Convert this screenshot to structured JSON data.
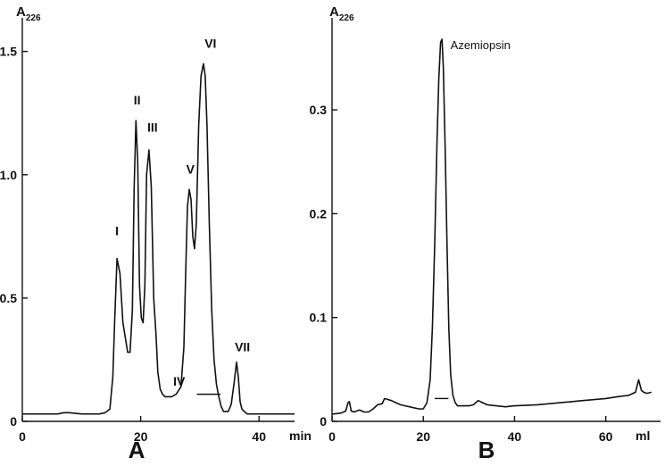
{
  "chart_data": [
    {
      "type": "line",
      "panel_label": "A",
      "ylabel_main": "A",
      "ylabel_sub": "226",
      "x_unit": "min",
      "xlim": [
        0,
        46
      ],
      "ylim": [
        0,
        1.6
      ],
      "x_ticks": [
        {
          "value": 0,
          "label": "0"
        },
        {
          "value": 20,
          "label": "20"
        },
        {
          "value": 40,
          "label": "40"
        }
      ],
      "y_ticks": [
        {
          "value": 0,
          "label": "0"
        },
        {
          "value": 0.5,
          "label": "0.5"
        },
        {
          "value": 1.0,
          "label": "1.0"
        },
        {
          "value": 1.5,
          "label": "1.5"
        }
      ],
      "peak_labels": [
        {
          "text": "I",
          "x": 16.0,
          "y": 0.74
        },
        {
          "text": "II",
          "x": 19.4,
          "y": 1.27
        },
        {
          "text": "III",
          "x": 22.0,
          "y": 1.16
        },
        {
          "text": "IV",
          "x": 26.5,
          "y": 0.13
        },
        {
          "text": "V",
          "x": 28.4,
          "y": 0.99
        },
        {
          "text": "VI",
          "x": 31.8,
          "y": 1.5
        },
        {
          "text": "VII",
          "x": 37.2,
          "y": 0.27
        }
      ],
      "fraction_bar": {
        "x_start": 29.5,
        "x_end": 33.5,
        "y": 0.11
      },
      "series": [
        {
          "x": [
            0,
            2,
            4,
            6,
            7,
            8,
            10,
            12,
            13,
            14,
            14.8,
            15.3,
            15.6,
            16.0,
            16.5,
            17.0,
            17.4,
            17.8,
            18.2,
            18.6,
            18.9,
            19.2,
            19.5,
            19.8,
            20.1,
            20.4,
            20.7,
            21.0,
            21.4,
            21.8,
            22.2,
            22.6,
            22.9,
            23.3,
            23.7,
            24.1,
            24.6,
            25.2,
            26.0,
            26.8,
            27.3,
            27.6,
            27.9,
            28.2,
            28.5,
            28.8,
            29.1,
            29.4,
            29.8,
            30.2,
            30.6,
            30.9,
            31.2,
            31.6,
            32.0,
            32.4,
            32.8,
            33.2,
            33.6,
            34.0,
            34.4,
            34.8,
            35.3,
            35.8,
            36.2,
            36.5,
            36.8,
            37.1,
            37.5,
            38.0,
            38.8,
            40.0,
            42.0,
            44.0,
            46.0
          ],
          "y": [
            0.03,
            0.03,
            0.03,
            0.03,
            0.035,
            0.035,
            0.03,
            0.03,
            0.03,
            0.035,
            0.05,
            0.18,
            0.4,
            0.66,
            0.6,
            0.4,
            0.34,
            0.28,
            0.28,
            0.45,
            0.95,
            1.22,
            1.05,
            0.55,
            0.42,
            0.4,
            0.55,
            1.0,
            1.1,
            0.95,
            0.5,
            0.35,
            0.2,
            0.13,
            0.11,
            0.1,
            0.1,
            0.1,
            0.11,
            0.14,
            0.3,
            0.6,
            0.87,
            0.94,
            0.9,
            0.75,
            0.7,
            0.8,
            1.2,
            1.4,
            1.45,
            1.4,
            1.2,
            0.8,
            0.45,
            0.25,
            0.15,
            0.1,
            0.06,
            0.04,
            0.04,
            0.04,
            0.07,
            0.16,
            0.24,
            0.18,
            0.08,
            0.05,
            0.04,
            0.03,
            0.03,
            0.03,
            0.03,
            0.03,
            0.03
          ]
        }
      ]
    },
    {
      "type": "line",
      "panel_label": "B",
      "ylabel_main": "A",
      "ylabel_sub": "226",
      "x_unit": "ml",
      "xlim": [
        0,
        72
      ],
      "ylim": [
        0,
        0.38
      ],
      "x_ticks": [
        {
          "value": 0,
          "label": "0"
        },
        {
          "value": 20,
          "label": "20"
        },
        {
          "value": 40,
          "label": "40"
        },
        {
          "value": 60,
          "label": "60"
        }
      ],
      "y_ticks": [
        {
          "value": 0,
          "label": "0"
        },
        {
          "value": 0.1,
          "label": "0.1"
        },
        {
          "value": 0.2,
          "label": "0.2"
        },
        {
          "value": 0.3,
          "label": "0.3"
        }
      ],
      "annotations": [
        {
          "text": "Azemiopsin",
          "x": 24.0,
          "y": 0.362
        }
      ],
      "fraction_bar": {
        "x_start": 22.5,
        "x_end": 25.5,
        "y": 0.022
      },
      "series": [
        {
          "x": [
            0,
            2,
            3,
            3.5,
            3.8,
            4.2,
            4.8,
            6,
            7,
            8,
            9,
            10,
            11,
            11.5,
            12.3,
            13,
            14,
            15,
            16,
            17,
            18,
            19,
            20,
            20.8,
            21.5,
            22,
            22.5,
            23,
            23.4,
            23.8,
            24.1,
            24.4,
            24.8,
            25.2,
            25.6,
            26,
            26.5,
            27,
            27.5,
            28,
            29,
            30,
            31,
            32,
            33,
            34,
            36,
            38,
            40,
            45,
            50,
            55,
            60,
            63,
            65,
            66.5,
            67.2,
            67.5,
            67.8,
            68.3,
            69,
            70
          ],
          "y": [
            0.007,
            0.008,
            0.01,
            0.018,
            0.019,
            0.01,
            0.009,
            0.011,
            0.009,
            0.009,
            0.012,
            0.016,
            0.017,
            0.022,
            0.021,
            0.02,
            0.018,
            0.016,
            0.015,
            0.014,
            0.013,
            0.012,
            0.012,
            0.018,
            0.04,
            0.09,
            0.17,
            0.27,
            0.33,
            0.365,
            0.368,
            0.34,
            0.26,
            0.17,
            0.09,
            0.045,
            0.025,
            0.018,
            0.015,
            0.015,
            0.015,
            0.015,
            0.016,
            0.02,
            0.018,
            0.016,
            0.015,
            0.014,
            0.015,
            0.016,
            0.018,
            0.02,
            0.022,
            0.024,
            0.025,
            0.028,
            0.04,
            0.035,
            0.03,
            0.028,
            0.027,
            0.028
          ]
        }
      ]
    }
  ]
}
